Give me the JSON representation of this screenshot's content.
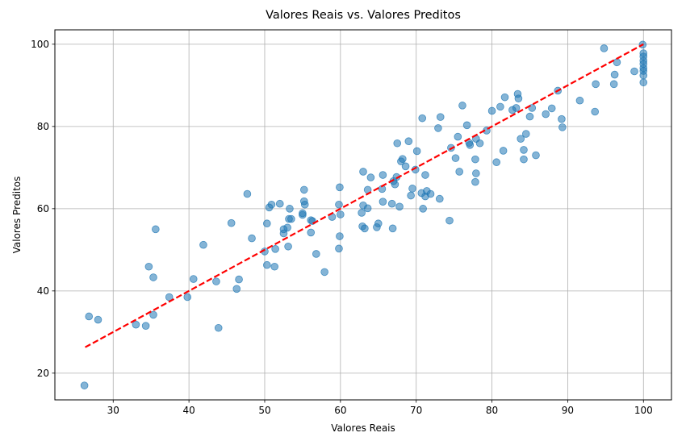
{
  "chart_data": {
    "type": "scatter",
    "title": "Valores Reais vs. Valores Preditos",
    "xlabel": "Valores Reais",
    "ylabel": "Valores Preditos",
    "xlim": [
      22.3,
      103.7
    ],
    "ylim": [
      13.5,
      103.5
    ],
    "xticks": [
      "30",
      "40",
      "50",
      "60",
      "70",
      "80",
      "90",
      "100"
    ],
    "yticks": [
      "20",
      "40",
      "60",
      "80",
      "100"
    ],
    "grid": true,
    "point_color": "#1f77b4",
    "point_alpha": 0.55,
    "reference_line": {
      "x": [
        26.3,
        100
      ],
      "y": [
        26.3,
        100
      ],
      "color": "#ff0000",
      "style": "dashed"
    },
    "points": [
      [
        26.2,
        17.0
      ],
      [
        26.8,
        33.8
      ],
      [
        28.0,
        33.0
      ],
      [
        33.0,
        31.8
      ],
      [
        34.3,
        31.5
      ],
      [
        35.3,
        34.2
      ],
      [
        34.7,
        45.9
      ],
      [
        35.3,
        43.3
      ],
      [
        35.6,
        55.0
      ],
      [
        37.4,
        38.5
      ],
      [
        39.8,
        38.5
      ],
      [
        40.6,
        42.9
      ],
      [
        41.9,
        51.2
      ],
      [
        43.6,
        42.3
      ],
      [
        43.9,
        31.0
      ],
      [
        45.6,
        56.5
      ],
      [
        46.3,
        40.5
      ],
      [
        46.6,
        42.8
      ],
      [
        47.7,
        63.6
      ],
      [
        48.3,
        52.8
      ],
      [
        50.0,
        49.6
      ],
      [
        50.3,
        46.3
      ],
      [
        50.3,
        56.4
      ],
      [
        50.6,
        60.3
      ],
      [
        50.9,
        61.0
      ],
      [
        51.3,
        45.9
      ],
      [
        51.4,
        50.2
      ],
      [
        52.0,
        61.2
      ],
      [
        52.5,
        54.0
      ],
      [
        52.5,
        55.0
      ],
      [
        53.1,
        50.8
      ],
      [
        53.2,
        57.5
      ],
      [
        53.3,
        60.0
      ],
      [
        53.5,
        57.5
      ],
      [
        53.0,
        55.4
      ],
      [
        55.0,
        58.5
      ],
      [
        55.0,
        58.9
      ],
      [
        55.2,
        61.8
      ],
      [
        55.2,
        64.6
      ],
      [
        55.3,
        61.0
      ],
      [
        56.1,
        57.2
      ],
      [
        56.1,
        54.2
      ],
      [
        56.3,
        57.0
      ],
      [
        56.8,
        49.0
      ],
      [
        57.9,
        44.6
      ],
      [
        58.9,
        58.0
      ],
      [
        59.8,
        50.3
      ],
      [
        59.9,
        53.3
      ],
      [
        59.8,
        61.0
      ],
      [
        59.9,
        65.2
      ],
      [
        60.0,
        58.6
      ],
      [
        62.8,
        59.0
      ],
      [
        62.9,
        55.7
      ],
      [
        63.0,
        60.8
      ],
      [
        63.2,
        55.2
      ],
      [
        63.0,
        69.0
      ],
      [
        63.6,
        64.6
      ],
      [
        63.6,
        60.1
      ],
      [
        64.0,
        67.6
      ],
      [
        64.8,
        55.5
      ],
      [
        65.0,
        56.4
      ],
      [
        65.5,
        64.8
      ],
      [
        65.6,
        68.2
      ],
      [
        65.6,
        61.7
      ],
      [
        66.8,
        61.2
      ],
      [
        66.9,
        55.2
      ],
      [
        67.0,
        66.7
      ],
      [
        67.2,
        65.9
      ],
      [
        67.4,
        67.7
      ],
      [
        67.5,
        75.9
      ],
      [
        67.8,
        60.5
      ],
      [
        68.0,
        71.5
      ],
      [
        68.2,
        72.1
      ],
      [
        68.6,
        70.3
      ],
      [
        69.0,
        76.4
      ],
      [
        69.3,
        63.2
      ],
      [
        69.5,
        64.9
      ],
      [
        69.9,
        69.5
      ],
      [
        70.1,
        74.0
      ],
      [
        70.7,
        63.8
      ],
      [
        70.8,
        82.0
      ],
      [
        70.9,
        60.0
      ],
      [
        71.2,
        68.2
      ],
      [
        71.2,
        63.0
      ],
      [
        71.4,
        64.3
      ],
      [
        71.9,
        63.6
      ],
      [
        72.9,
        79.6
      ],
      [
        73.1,
        62.4
      ],
      [
        73.2,
        82.3
      ],
      [
        74.4,
        57.1
      ],
      [
        74.6,
        74.8
      ],
      [
        75.2,
        72.3
      ],
      [
        75.5,
        77.5
      ],
      [
        75.7,
        69.0
      ],
      [
        76.1,
        85.1
      ],
      [
        76.7,
        80.3
      ],
      [
        77.0,
        76.0
      ],
      [
        77.1,
        75.5
      ],
      [
        77.8,
        72.0
      ],
      [
        77.8,
        66.5
      ],
      [
        77.9,
        68.6
      ],
      [
        77.9,
        77.0
      ],
      [
        78.4,
        75.9
      ],
      [
        79.3,
        79.0
      ],
      [
        80.0,
        83.8
      ],
      [
        80.6,
        71.3
      ],
      [
        81.1,
        84.8
      ],
      [
        81.5,
        74.1
      ],
      [
        81.7,
        87.1
      ],
      [
        82.7,
        84.0
      ],
      [
        83.2,
        84.5
      ],
      [
        83.5,
        86.8
      ],
      [
        83.4,
        87.9
      ],
      [
        83.8,
        77.0
      ],
      [
        84.2,
        74.3
      ],
      [
        84.2,
        72.0
      ],
      [
        84.5,
        78.2
      ],
      [
        85.0,
        82.4
      ],
      [
        85.3,
        84.5
      ],
      [
        85.8,
        73.0
      ],
      [
        87.1,
        83.0
      ],
      [
        87.9,
        84.4
      ],
      [
        88.7,
        88.7
      ],
      [
        89.2,
        81.8
      ],
      [
        89.3,
        79.8
      ],
      [
        91.6,
        86.3
      ],
      [
        93.6,
        83.6
      ],
      [
        93.7,
        90.3
      ],
      [
        94.8,
        99.0
      ],
      [
        96.2,
        92.6
      ],
      [
        96.1,
        90.3
      ],
      [
        96.5,
        95.6
      ],
      [
        98.8,
        93.4
      ],
      [
        99.9,
        99.9
      ],
      [
        100.0,
        97.8
      ],
      [
        100.0,
        97.0
      ],
      [
        100.0,
        96.0
      ],
      [
        100.0,
        95.2
      ],
      [
        100.0,
        94.2
      ],
      [
        100.0,
        93.5
      ],
      [
        100.0,
        92.4
      ],
      [
        100.0,
        90.7
      ]
    ]
  }
}
